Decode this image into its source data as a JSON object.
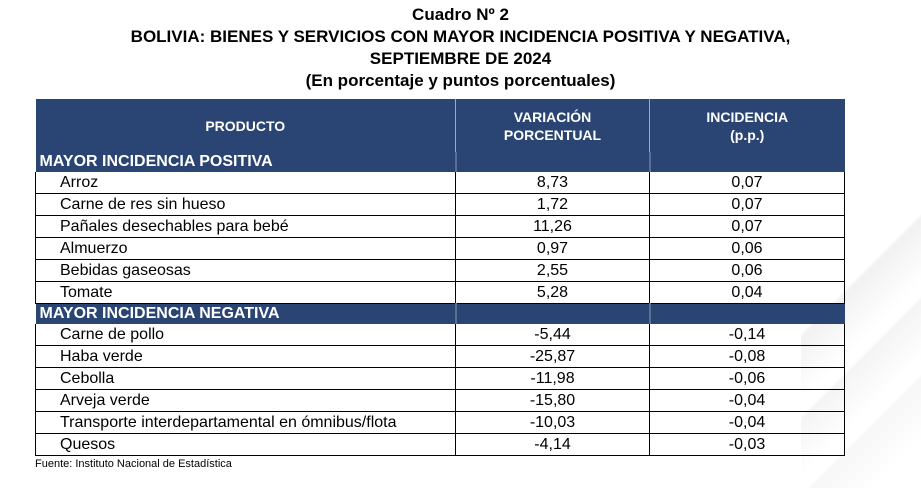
{
  "title": {
    "line1": "Cuadro Nº 2",
    "line2": "BOLIVIA: BIENES Y SERVICIOS CON MAYOR INCIDENCIA POSITIVA Y NEGATIVA,",
    "line3": "SEPTIEMBRE DE 2024",
    "line4": "(En porcentaje y puntos porcentuales)"
  },
  "columns": {
    "product": "PRODUCTO",
    "variation_l1": "VARIACIÓN",
    "variation_l2": "PORCENTUAL",
    "incidence_l1": "INCIDENCIA",
    "incidence_l2": "(p.p.)"
  },
  "positive": {
    "label": "MAYOR INCIDENCIA POSITIVA",
    "rows": [
      {
        "product": "Arroz",
        "variation": "8,73",
        "incidence": "0,07"
      },
      {
        "product": "Carne de res sin hueso",
        "variation": "1,72",
        "incidence": "0,07"
      },
      {
        "product": "Pañales desechables para bebé",
        "variation": "11,26",
        "incidence": "0,07"
      },
      {
        "product": "Almuerzo",
        "variation": "0,97",
        "incidence": "0,06"
      },
      {
        "product": "Bebidas gaseosas",
        "variation": "2,55",
        "incidence": "0,06"
      },
      {
        "product": "Tomate",
        "variation": "5,28",
        "incidence": "0,04"
      }
    ]
  },
  "negative": {
    "label": "MAYOR INCIDENCIA NEGATIVA",
    "rows": [
      {
        "product": "Carne de pollo",
        "variation": "-5,44",
        "incidence": "-0,14"
      },
      {
        "product": "Haba verde",
        "variation": "-25,87",
        "incidence": "-0,08"
      },
      {
        "product": "Cebolla",
        "variation": "-11,98",
        "incidence": "-0,06"
      },
      {
        "product": "Arveja verde",
        "variation": "-15,80",
        "incidence": "-0,04"
      },
      {
        "product": "Transporte interdepartamental en ómnibus/flota",
        "variation": "-10,03",
        "incidence": "-0,04"
      },
      {
        "product": "Quesos",
        "variation": "-4,14",
        "incidence": "-0,03"
      }
    ]
  },
  "source": "Fuente: Instituto Nacional de Estadística",
  "colors": {
    "header_bg": "#2a4574",
    "header_text": "#ffffff"
  }
}
